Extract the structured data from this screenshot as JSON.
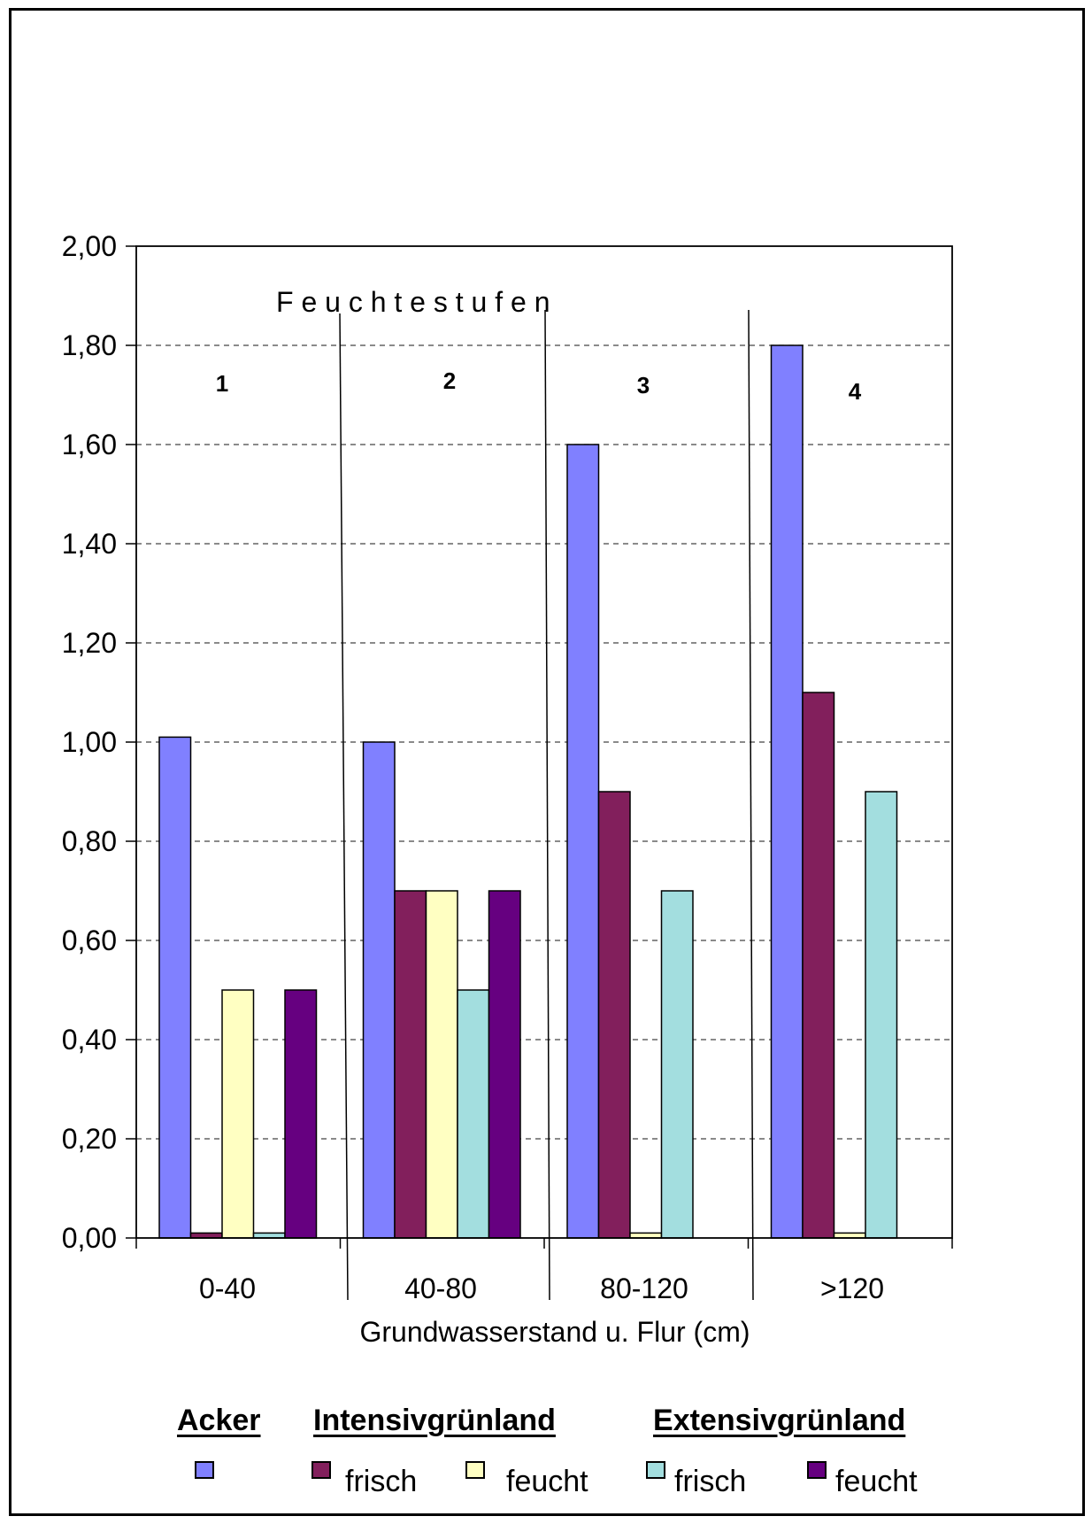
{
  "chart_data": {
    "type": "bar",
    "title": "F e u c h t e s t u f e n",
    "xlabel": "Grundwasserstand u. Flur (cm)",
    "ylabel": "",
    "ylim": [
      0,
      2
    ],
    "yticks": [
      "0,00",
      "0,20",
      "0,40",
      "0,60",
      "0,80",
      "1,00",
      "1,20",
      "1,40",
      "1,60",
      "1,80",
      "2,00"
    ],
    "grid": "horizontal dashed",
    "categories": [
      "0-40",
      "40-80",
      "80-120",
      ">120"
    ],
    "zone_labels": [
      "1",
      "2",
      "3",
      "4"
    ],
    "series": [
      {
        "key": "acker",
        "color": "#8080ff",
        "values": [
          1.01,
          1.0,
          1.6,
          1.8
        ]
      },
      {
        "key": "intensiv_frisch",
        "color": "#821f5c",
        "values": [
          0.01,
          0.7,
          0.9,
          1.1
        ]
      },
      {
        "key": "intensiv_feucht",
        "color": "#ffffc2",
        "values": [
          0.5,
          0.7,
          0.01,
          0.01
        ]
      },
      {
        "key": "extensiv_frisch",
        "color": "#a3dedf",
        "values": [
          0.01,
          0.5,
          0.7,
          0.9
        ]
      },
      {
        "key": "extensiv_feucht",
        "color": "#660080",
        "values": [
          0.5,
          0.7,
          0,
          0
        ]
      }
    ],
    "legend": {
      "placement": "bottom",
      "groups": [
        "Acker",
        "Intensivgrünland",
        "Extensivgrünland"
      ],
      "items": [
        {
          "label": "",
          "color": "#8080ff"
        },
        {
          "label": "frisch",
          "color": "#821f5c"
        },
        {
          "label": "feucht",
          "color": "#ffffc2"
        },
        {
          "label": "frisch",
          "color": "#a3dedf"
        },
        {
          "label": "feucht",
          "color": "#660080"
        }
      ]
    }
  }
}
